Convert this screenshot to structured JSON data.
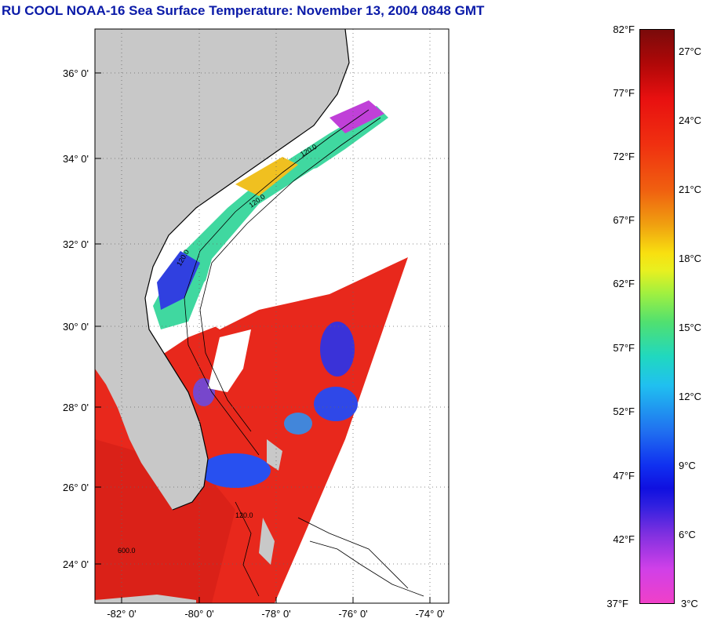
{
  "title": "RU COOL  NOAA-16  Sea Surface Temperature:  November 13, 2004 0848 GMT",
  "map": {
    "lat_labels": [
      "36° 0'",
      "34° 0'",
      "32° 0'",
      "30° 0'",
      "28° 0'",
      "26° 0'",
      "24° 0'"
    ],
    "lon_labels": [
      "-82° 0'",
      "-80° 0'",
      "-78° 0'",
      "-76° 0'",
      "-74° 0'"
    ],
    "contour_labels": [
      "120.0",
      "120.0",
      "120.0",
      "120.0",
      "600.0"
    ],
    "colors": {
      "land": "#c8c8c8",
      "cloud": "#ffffff",
      "warm_water": "#e8281c",
      "cool_water": "#2040e0"
    }
  },
  "colorbar": {
    "fahrenheit": [
      "82°F",
      "77°F",
      "72°F",
      "67°F",
      "62°F",
      "57°F",
      "52°F",
      "47°F",
      "42°F",
      "37°F"
    ],
    "celsius": [
      "27°C",
      "24°C",
      "21°C",
      "18°C",
      "15°C",
      "12°C",
      "9°C",
      "6°C",
      "3°C"
    ]
  }
}
